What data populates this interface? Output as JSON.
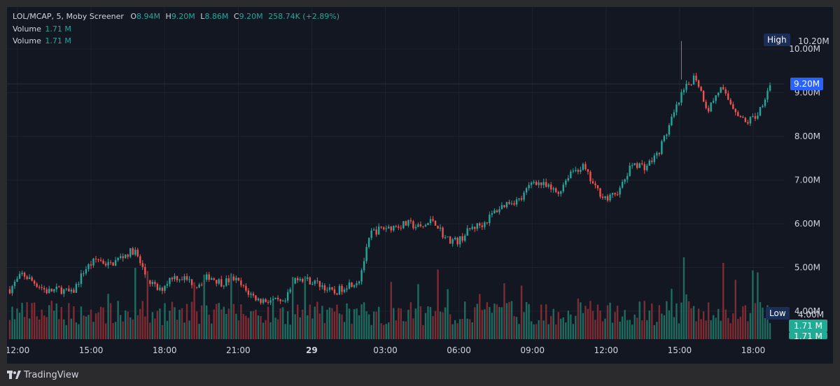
{
  "header": {
    "symbol": "LOL/MCAP, 5, Moby Screener",
    "o_label": "O",
    "o_value": "8.94M",
    "h_label": "H",
    "h_value": "9.20M",
    "l_label": "L",
    "l_value": "8.86M",
    "c_label": "C",
    "c_value": "9.20M",
    "change": "258.74K (+2.89%)",
    "volume_label_1": "Volume",
    "volume_value_1": "1.71 M",
    "volume_label_2": "Volume",
    "volume_value_2": "1.71 M"
  },
  "price_axis": {
    "ticks": [
      "10.00M",
      "9.00M",
      "8.00M",
      "7.00M",
      "6.00M",
      "5.00M",
      "4.00M"
    ],
    "high_label": "High",
    "high_value": "10.20M",
    "low_label": "Low",
    "low_value": "4.00M",
    "last_price": "9.20M",
    "last_volume": "1.71 M",
    "last_volume_2": "1.71 M"
  },
  "time_axis": {
    "ticks": [
      "12:00",
      "15:00",
      "18:00",
      "21:00",
      "29",
      "03:00",
      "06:00",
      "09:00",
      "12:00",
      "15:00",
      "18:00"
    ]
  },
  "footer": {
    "brand": "TradingView"
  },
  "colors": {
    "background": "#131722",
    "up": "#26a69a",
    "down": "#ef5350",
    "up_volume": "#1e6b5f",
    "down_volume": "#7d2c33",
    "grid": "#1e222d",
    "text": "#d1d4dc",
    "accent": "#2962ff"
  },
  "chart_data": {
    "type": "candlestick",
    "title": "LOL/MCAP, 5, Moby Screener",
    "xlabel": "",
    "ylabel": "",
    "ylim": [
      4.0,
      10.2
    ],
    "unit": "M",
    "interval": "5m",
    "x_ticks": [
      "12:00",
      "15:00",
      "18:00",
      "21:00",
      "29",
      "03:00",
      "06:00",
      "09:00",
      "12:00",
      "15:00",
      "18:00"
    ],
    "price_path": [
      [
        0,
        4.5
      ],
      [
        1,
        4.85
      ],
      [
        2,
        4.65
      ],
      [
        3,
        4.45
      ],
      [
        4,
        4.5
      ],
      [
        5,
        4.4
      ],
      [
        6,
        4.95
      ],
      [
        7,
        5.2
      ],
      [
        8,
        5.05
      ],
      [
        9,
        5.25
      ],
      [
        10,
        5.4
      ],
      [
        11,
        4.75
      ],
      [
        12,
        4.45
      ],
      [
        13,
        4.8
      ],
      [
        14,
        4.75
      ],
      [
        15,
        4.6
      ],
      [
        16,
        4.8
      ],
      [
        17,
        4.65
      ],
      [
        18,
        4.75
      ],
      [
        19,
        4.45
      ],
      [
        20,
        4.25
      ],
      [
        21,
        4.25
      ],
      [
        22,
        4.15
      ],
      [
        23,
        4.8
      ],
      [
        24,
        4.7
      ],
      [
        25,
        4.6
      ],
      [
        26,
        4.4
      ],
      [
        27,
        4.6
      ],
      [
        28,
        4.7
      ],
      [
        29,
        5.8
      ],
      [
        30,
        5.9
      ],
      [
        31,
        5.95
      ],
      [
        32,
        6.0
      ],
      [
        33,
        5.9
      ],
      [
        34,
        6.1
      ],
      [
        35,
        5.65
      ],
      [
        36,
        5.6
      ],
      [
        37,
        5.9
      ],
      [
        38,
        6.0
      ],
      [
        39,
        6.3
      ],
      [
        40,
        6.5
      ],
      [
        41,
        6.55
      ],
      [
        42,
        7.0
      ],
      [
        43,
        6.85
      ],
      [
        44,
        6.7
      ],
      [
        45,
        7.2
      ],
      [
        46,
        7.3
      ],
      [
        47,
        6.8
      ],
      [
        48,
        6.55
      ],
      [
        49,
        6.8
      ],
      [
        50,
        7.4
      ],
      [
        51,
        7.3
      ],
      [
        52,
        7.6
      ],
      [
        53,
        8.3
      ],
      [
        54,
        9.0
      ],
      [
        55,
        9.4
      ],
      [
        56,
        8.6
      ],
      [
        57,
        9.1
      ],
      [
        58,
        8.7
      ],
      [
        59,
        8.3
      ],
      [
        60,
        8.5
      ],
      [
        61,
        9.2
      ]
    ],
    "volume_spikes": [
      {
        "x": "15:00",
        "value": 1.71
      }
    ]
  }
}
